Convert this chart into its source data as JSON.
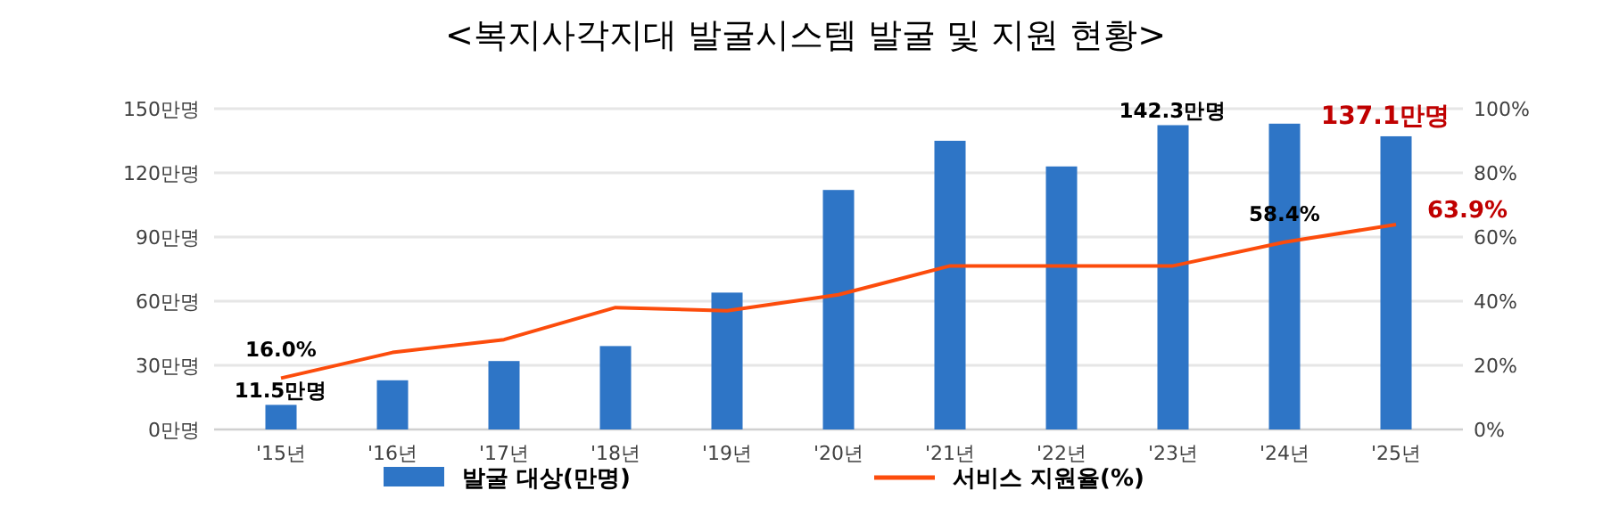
{
  "chart_data": {
    "type": "bar",
    "title": "<복지사각지대 발굴시스템 발굴 및 지원 현황>",
    "categories": [
      "'15년",
      "'16년",
      "'17년",
      "'18년",
      "'19년",
      "'20년",
      "'21년",
      "'22년",
      "'23년",
      "'24년",
      "'25년"
    ],
    "series": [
      {
        "name": "발굴 대상(만명)",
        "color": "#2e75c6",
        "values": [
          11.5,
          23,
          32,
          39,
          64,
          112,
          135,
          123,
          142.3,
          143,
          137.1
        ],
        "value_labels": [
          "11.5만명",
          null,
          null,
          null,
          null,
          null,
          null,
          null,
          "142.3만명",
          null,
          "137.1만명"
        ]
      },
      {
        "name": "서비스 지원율(%)",
        "type": "line",
        "axis": "y2",
        "color": "#fc4c0c",
        "values": [
          16.0,
          24,
          28,
          38,
          37,
          42,
          51,
          51,
          51,
          58.4,
          63.9
        ],
        "value_labels": [
          "16.0%",
          null,
          null,
          null,
          null,
          null,
          null,
          null,
          null,
          "58.4%",
          "63.9%"
        ]
      }
    ],
    "ylim": [
      0,
      150
    ],
    "yticks": [
      {
        "value": 0,
        "label": "0만명"
      },
      {
        "value": 30,
        "label": "30만명"
      },
      {
        "value": 60,
        "label": "60만명"
      },
      {
        "value": 90,
        "label": "90만명"
      },
      {
        "value": 120,
        "label": "120만명"
      },
      {
        "value": 150,
        "label": "150만명"
      }
    ],
    "y2lim": [
      0,
      100
    ],
    "y2ticks": [
      {
        "value": 0,
        "label": "0%"
      },
      {
        "value": 20,
        "label": "20%"
      },
      {
        "value": 40,
        "label": "40%"
      },
      {
        "value": 60,
        "label": "60%"
      },
      {
        "value": 80,
        "label": "80%"
      },
      {
        "value": 100,
        "label": "100%"
      }
    ],
    "grid": "y",
    "legend": "bottom"
  }
}
